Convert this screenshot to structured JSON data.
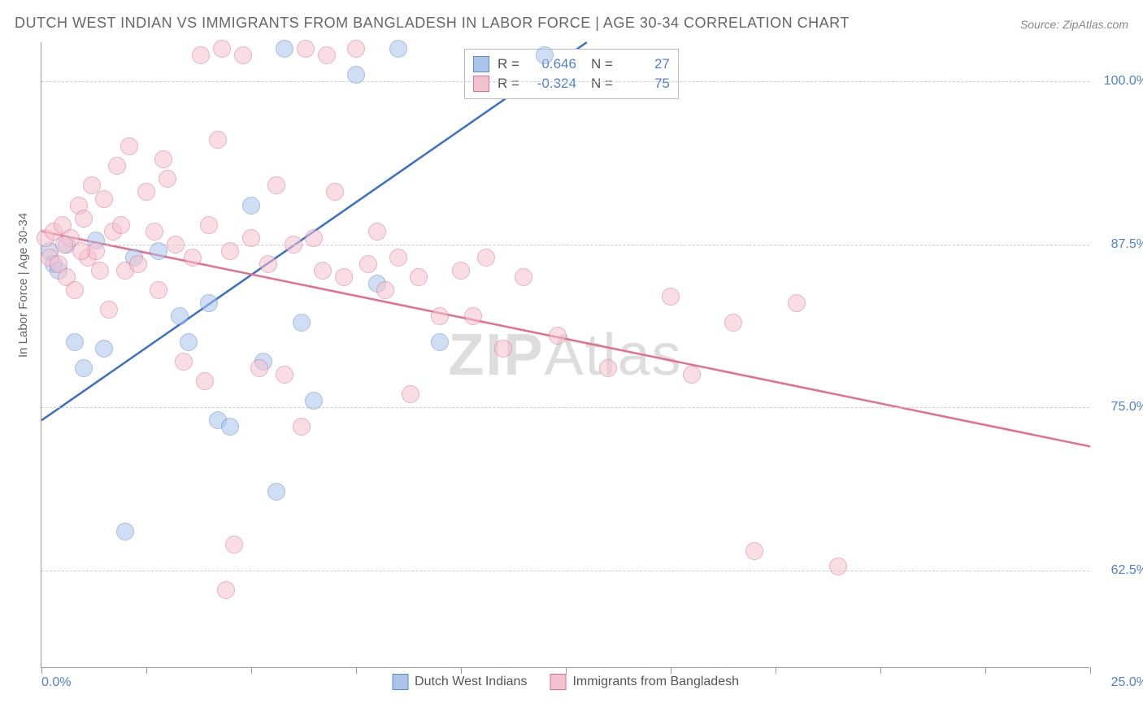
{
  "title": "DUTCH WEST INDIAN VS IMMIGRANTS FROM BANGLADESH IN LABOR FORCE | AGE 30-34 CORRELATION CHART",
  "source": "Source: ZipAtlas.com",
  "ylabel": "In Labor Force | Age 30-34",
  "watermark_bold": "ZIP",
  "watermark_rest": "Atlas",
  "chart": {
    "type": "scatter",
    "background_color": "#ffffff",
    "grid_color": "#cccccc",
    "axis_color": "#999999",
    "xlim": [
      0,
      25
    ],
    "ylim": [
      55,
      103
    ],
    "xticks_positions": [
      0,
      2.5,
      5,
      7.5,
      10,
      12.5,
      15,
      17.5,
      20,
      22.5,
      25
    ],
    "xticks_labeled": {
      "0": "0.0%",
      "25": "25.0%"
    },
    "yticks": [
      {
        "v": 62.5,
        "label": "62.5%"
      },
      {
        "v": 75.0,
        "label": "75.0%"
      },
      {
        "v": 87.5,
        "label": "87.5%"
      },
      {
        "v": 100.0,
        "label": "100.0%"
      }
    ],
    "marker_radius": 11,
    "marker_opacity": 0.55,
    "series": [
      {
        "key": "blue",
        "name": "Dutch West Indians",
        "fill": "#aac4ea",
        "stroke": "#5a8ad4",
        "line_color": "#3a6fc8",
        "R": "0.646",
        "N": "27",
        "trend": {
          "x1": 0,
          "y1": 74.0,
          "x2": 13.0,
          "y2": 103.0
        },
        "points": [
          [
            0.2,
            87.0
          ],
          [
            0.3,
            86.0
          ],
          [
            0.4,
            85.5
          ],
          [
            0.6,
            87.5
          ],
          [
            0.8,
            80.0
          ],
          [
            1.0,
            78.0
          ],
          [
            1.3,
            87.8
          ],
          [
            1.5,
            79.5
          ],
          [
            2.0,
            65.5
          ],
          [
            2.2,
            86.5
          ],
          [
            2.8,
            87.0
          ],
          [
            3.3,
            82.0
          ],
          [
            3.5,
            80.0
          ],
          [
            4.0,
            83.0
          ],
          [
            4.2,
            74.0
          ],
          [
            4.5,
            73.5
          ],
          [
            5.0,
            90.5
          ],
          [
            5.3,
            78.5
          ],
          [
            5.6,
            68.5
          ],
          [
            5.8,
            102.5
          ],
          [
            6.2,
            81.5
          ],
          [
            6.5,
            75.5
          ],
          [
            7.5,
            100.5
          ],
          [
            8.0,
            84.5
          ],
          [
            8.5,
            102.5
          ],
          [
            9.5,
            80.0
          ],
          [
            12.0,
            102.0
          ]
        ]
      },
      {
        "key": "pink",
        "name": "Immigrants from Bangladesh",
        "fill": "#f4c2ce",
        "stroke": "#e36f8d",
        "line_color": "#e36f8d",
        "R": "-0.324",
        "N": "75",
        "trend": {
          "x1": 0,
          "y1": 88.5,
          "x2": 25.0,
          "y2": 72.0
        },
        "points": [
          [
            0.1,
            88.0
          ],
          [
            0.2,
            86.5
          ],
          [
            0.3,
            88.5
          ],
          [
            0.4,
            86.0
          ],
          [
            0.5,
            89.0
          ],
          [
            0.6,
            85.0
          ],
          [
            0.7,
            88.0
          ],
          [
            0.8,
            84.0
          ],
          [
            0.9,
            90.5
          ],
          [
            1.0,
            89.5
          ],
          [
            1.1,
            86.5
          ],
          [
            1.2,
            92.0
          ],
          [
            1.3,
            87.0
          ],
          [
            1.4,
            85.5
          ],
          [
            1.5,
            91.0
          ],
          [
            1.6,
            82.5
          ],
          [
            1.7,
            88.5
          ],
          [
            1.8,
            93.5
          ],
          [
            2.0,
            85.5
          ],
          [
            2.1,
            95.0
          ],
          [
            2.3,
            86.0
          ],
          [
            2.5,
            91.5
          ],
          [
            2.7,
            88.5
          ],
          [
            2.8,
            84.0
          ],
          [
            3.0,
            92.5
          ],
          [
            3.2,
            87.5
          ],
          [
            3.4,
            78.5
          ],
          [
            3.6,
            86.5
          ],
          [
            3.8,
            102.0
          ],
          [
            4.0,
            89.0
          ],
          [
            4.2,
            95.5
          ],
          [
            4.4,
            61.0
          ],
          [
            4.5,
            87.0
          ],
          [
            4.6,
            64.5
          ],
          [
            4.8,
            102.0
          ],
          [
            5.0,
            88.0
          ],
          [
            5.2,
            78.0
          ],
          [
            5.4,
            86.0
          ],
          [
            5.6,
            92.0
          ],
          [
            5.8,
            77.5
          ],
          [
            6.0,
            87.5
          ],
          [
            6.2,
            73.5
          ],
          [
            6.3,
            102.5
          ],
          [
            6.5,
            88.0
          ],
          [
            6.7,
            85.5
          ],
          [
            6.8,
            102.0
          ],
          [
            7.0,
            91.5
          ],
          [
            7.2,
            85.0
          ],
          [
            7.5,
            102.5
          ],
          [
            7.8,
            86.0
          ],
          [
            8.0,
            88.5
          ],
          [
            8.2,
            84.0
          ],
          [
            8.5,
            86.5
          ],
          [
            8.8,
            76.0
          ],
          [
            9.0,
            85.0
          ],
          [
            9.5,
            82.0
          ],
          [
            10.0,
            85.5
          ],
          [
            10.3,
            82.0
          ],
          [
            10.6,
            86.5
          ],
          [
            11.0,
            79.5
          ],
          [
            11.5,
            85.0
          ],
          [
            12.3,
            80.5
          ],
          [
            13.5,
            78.0
          ],
          [
            15.0,
            83.5
          ],
          [
            15.5,
            77.5
          ],
          [
            16.5,
            81.5
          ],
          [
            17.0,
            64.0
          ],
          [
            18.0,
            83.0
          ],
          [
            19.0,
            62.8
          ],
          [
            4.3,
            102.5
          ],
          [
            3.9,
            77.0
          ],
          [
            2.9,
            94.0
          ],
          [
            1.9,
            89.0
          ],
          [
            0.95,
            87.0
          ],
          [
            0.55,
            87.5
          ]
        ]
      }
    ]
  },
  "legend_bottom": [
    {
      "key": "blue",
      "label": "Dutch West Indians"
    },
    {
      "key": "pink",
      "label": "Immigrants from Bangladesh"
    }
  ]
}
